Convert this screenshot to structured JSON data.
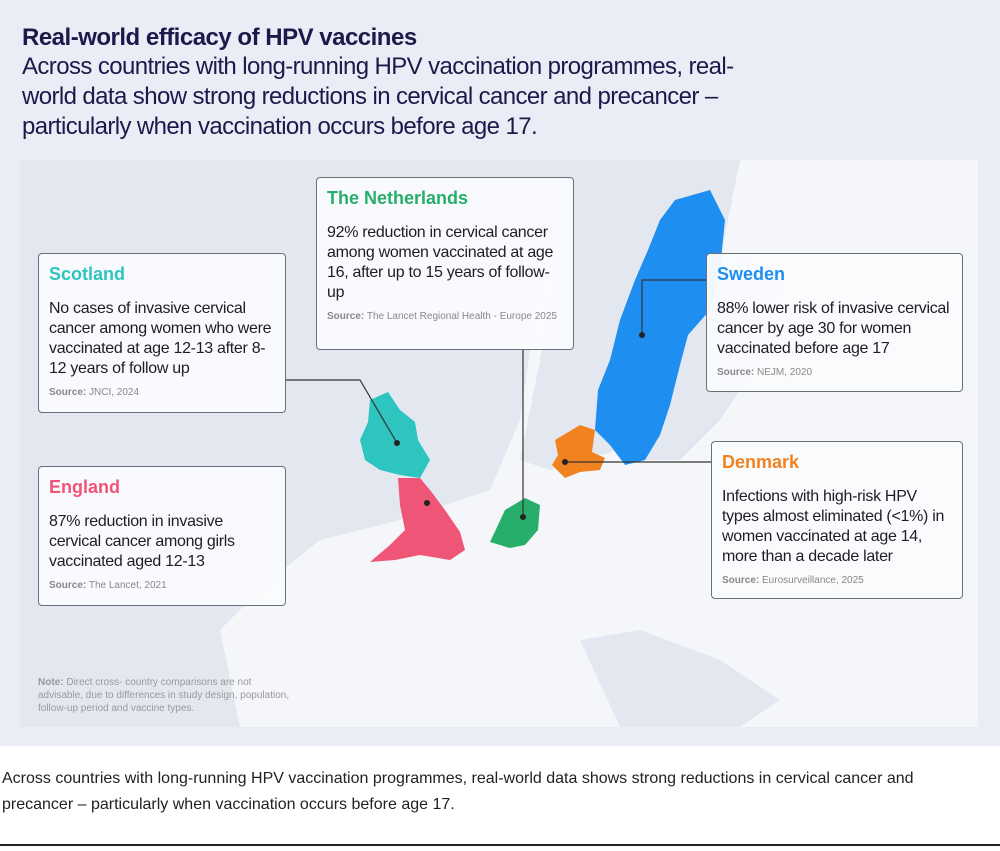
{
  "header": {
    "title": "Real-world efficacy of HPV vaccines",
    "subtitle": "Across countries with long-running HPV vaccination programmes, real-world data show strong reductions in cervical cancer and precancer – particularly when vaccination occurs before age 17."
  },
  "colors": {
    "scotland": "#2ec4c0",
    "england": "#ef5577",
    "netherlands": "#27ae6a",
    "sweden": "#1e8ef0",
    "denmark": "#f08320",
    "title": "#1c1a4a",
    "sea": "#e3e8f0",
    "land": "#f3f5f9"
  },
  "countries": [
    {
      "name": "Scotland",
      "text": "No cases of invasive cervical cancer among women who were vaccinated at age 12-13 after 8-12 years of follow up",
      "source_label": "Source:",
      "source": "JNCI, 2024"
    },
    {
      "name": "The Netherlands",
      "text": "92% reduction in cervical cancer among women vaccinated at age 16, after up to 15 years of follow-up",
      "source_label": "Source:",
      "source": "The Lancet Regional Health - Europe 2025"
    },
    {
      "name": "Sweden",
      "text": "88% lower risk of invasive cervical cancer by age 30 for women vaccinated before age 17",
      "source_label": "Source:",
      "source": "NEJM, 2020"
    },
    {
      "name": "England",
      "text": "87% reduction in invasive cervical cancer among girls vaccinated aged 12-13",
      "source_label": "Source:",
      "source": "The Lancet, 2021"
    },
    {
      "name": "Denmark",
      "text": "Infections with high-risk HPV types almost eliminated (<1%) in women vaccinated at age 14, more than a decade later",
      "source_label": "Source:",
      "source": "Eurosurveillance, 2025"
    }
  ],
  "note": {
    "label": "Note:",
    "text": "Direct cross- country comparisons are not advisable, due to differences in study design, population, follow-up period and vaccine types."
  },
  "caption": "Across countries with long-running HPV vaccination programmes, real-world data shows strong reductions in cervical cancer and precancer – particularly when vaccination occurs before age 17."
}
